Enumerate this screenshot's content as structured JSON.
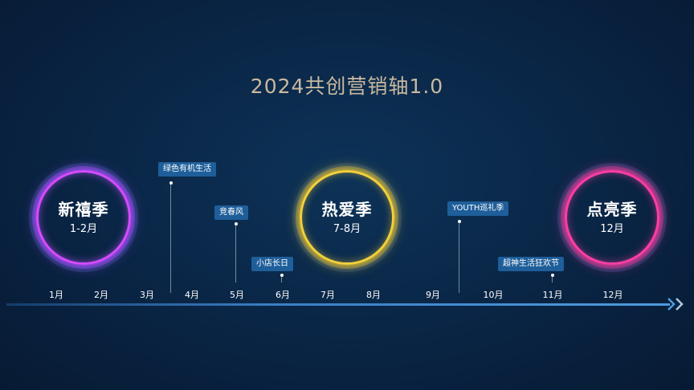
{
  "title": "2024共创营销轴1.0",
  "seasons": [
    {
      "name": "新禧季",
      "range": "1-2月",
      "ring_color": "#d64bff",
      "ring_color2": "#8f5bff"
    },
    {
      "name": "热爱季",
      "range": "7-8月",
      "ring_color": "#f2d03a",
      "ring_color2": "#f2d03a"
    },
    {
      "name": "点亮季",
      "range": "12月",
      "ring_color": "#ff3da6",
      "ring_color2": "#ff3da6"
    }
  ],
  "events": [
    {
      "label": "绿色有机生活"
    },
    {
      "label": "竞春风"
    },
    {
      "label": "小店长日"
    },
    {
      "label": "YOUTH巡礼季"
    },
    {
      "label": "超神生活狂欢节"
    }
  ],
  "months": [
    "1月",
    "2月",
    "3月",
    "4月",
    "5月",
    "6月",
    "7月",
    "8月",
    "9月",
    "10月",
    "11月",
    "12月"
  ],
  "colors": {
    "accent": "#1e5e9a",
    "axis": "#4d9be0",
    "title": "#c9b9a0"
  }
}
